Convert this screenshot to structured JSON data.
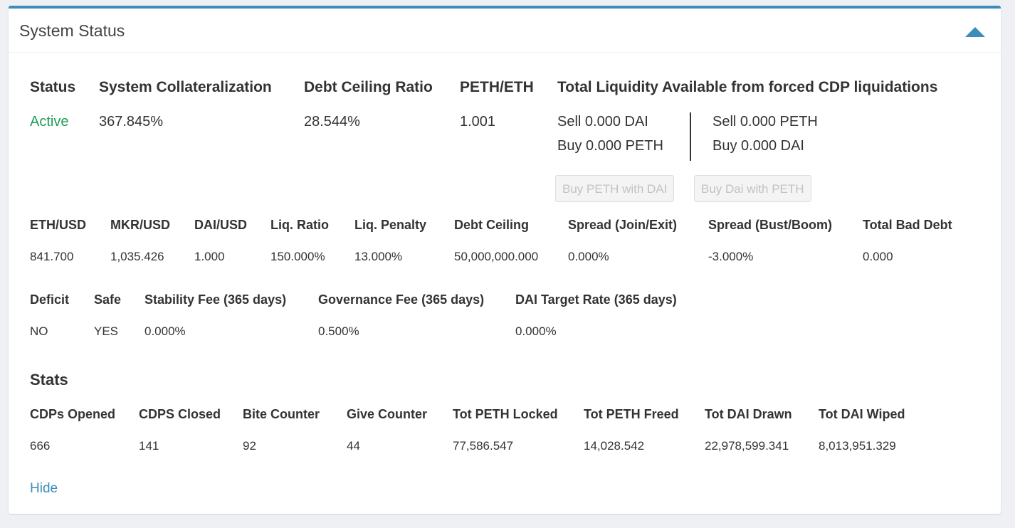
{
  "panel": {
    "title": "System Status",
    "collapse_icon": "chevron-up-icon",
    "accent": "#3c8dbc"
  },
  "overview": {
    "headers": [
      "Status",
      "System Collateralization",
      "Debt Ceiling Ratio",
      "PETH/ETH",
      "Total Liquidity Available from forced CDP liquidations"
    ],
    "status": "Active",
    "status_color": "#1e9e54",
    "collateralization": "367.845%",
    "debt_ceiling_ratio": "28.544%",
    "peth_eth": "1.001"
  },
  "liquidity": {
    "left": [
      "Sell 0.000 DAI",
      "Buy 0.000 PETH"
    ],
    "right": [
      "Sell 0.000 PETH",
      "Buy 0.000 DAI"
    ],
    "buttons": [
      "Buy PETH with DAI",
      "Buy Dai with PETH"
    ]
  },
  "prices": {
    "headers": [
      "ETH/USD",
      "MKR/USD",
      "DAI/USD",
      "Liq. Ratio",
      "Liq. Penalty",
      "Debt Ceiling",
      "Spread (Join/Exit)",
      "Spread (Bust/Boom)",
      "Total Bad Debt"
    ],
    "values": [
      "841.700",
      "1,035.426",
      "1.000",
      "150.000%",
      "13.000%",
      "50,000,000.000",
      "0.000%",
      "-3.000%",
      "0.000"
    ]
  },
  "fees": {
    "headers": [
      "Deficit",
      "Safe",
      "Stability Fee (365 days)",
      "Governance Fee (365 days)",
      "DAI Target Rate (365 days)"
    ],
    "values": [
      "NO",
      "YES",
      "0.000%",
      "0.500%",
      "0.000%"
    ]
  },
  "stats": {
    "title": "Stats",
    "headers": [
      "CDPs Opened",
      "CDPS Closed",
      "Bite Counter",
      "Give Counter",
      "Tot PETH Locked",
      "Tot PETH Freed",
      "Tot DAI Drawn",
      "Tot DAI Wiped"
    ],
    "values": [
      "666",
      "141",
      "92",
      "44",
      "77,586.547",
      "14,028.542",
      "22,978,599.341",
      "8,013,951.329"
    ]
  },
  "footer": {
    "hide_label": "Hide"
  }
}
